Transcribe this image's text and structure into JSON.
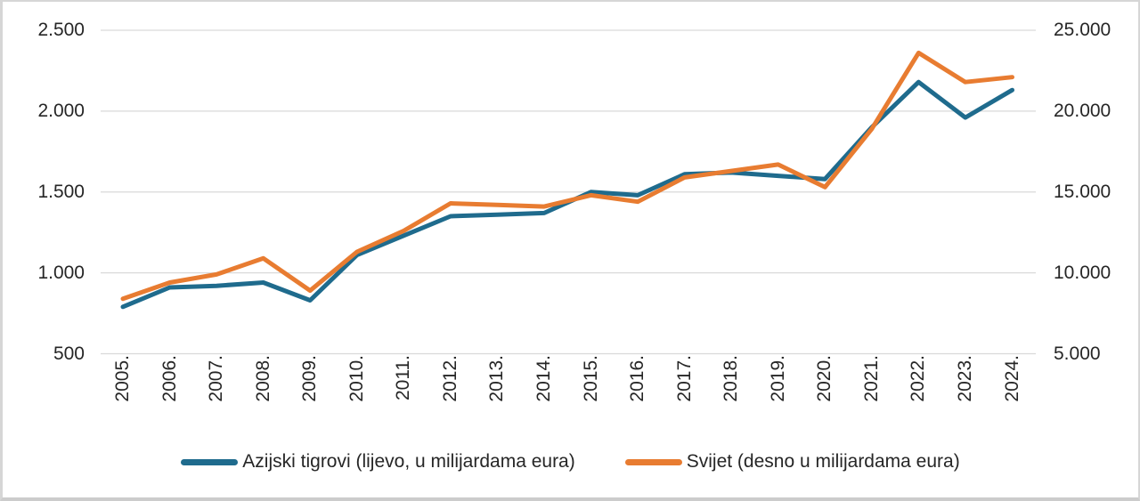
{
  "chart_data": {
    "type": "line",
    "title": "",
    "x_categories": [
      "2005.",
      "2006.",
      "2007.",
      "2008.",
      "2009.",
      "2010.",
      "2011.",
      "2012.",
      "2013.",
      "2014.",
      "2015.",
      "2016.",
      "2017.",
      "2018.",
      "2019.",
      "2020.",
      "2021.",
      "2022.",
      "2023.",
      "2024."
    ],
    "series": [
      {
        "name": "Azijski tigrovi (lijevo, u milijardama eura)",
        "axis": "left",
        "color": "#1f6b8d",
        "values": [
          790,
          910,
          920,
          940,
          830,
          1110,
          1230,
          1350,
          1360,
          1370,
          1500,
          1480,
          1610,
          1620,
          1600,
          1580,
          1900,
          2180,
          1960,
          2130
        ]
      },
      {
        "name": "Svijet (desno u milijardama eura)",
        "axis": "right",
        "color": "#e87c31",
        "values": [
          8400,
          9400,
          9900,
          10900,
          8900,
          11300,
          12600,
          14300,
          14200,
          14100,
          14800,
          14400,
          15900,
          16300,
          16700,
          15300,
          18900,
          23600,
          21800,
          22100
        ]
      }
    ],
    "left_axis": {
      "tick_labels": [
        "500",
        "1.000",
        "1.500",
        "2.000",
        "2.500"
      ],
      "tick_values": [
        500,
        1000,
        1500,
        2000,
        2500
      ],
      "min": 500,
      "max": 2500
    },
    "right_axis": {
      "tick_labels": [
        "5.000",
        "10.000",
        "15.000",
        "20.000",
        "25.000"
      ],
      "tick_values": [
        5000,
        10000,
        15000,
        20000,
        25000
      ],
      "min": 5000,
      "max": 25000
    },
    "grid": "horizontal",
    "gridline_color": "#d9d9d9",
    "legend_position": "bottom",
    "legend": [
      "Azijski tigrovi (lijevo, u milijardama eura)",
      "Svijet (desno u milijardama eura)"
    ]
  }
}
